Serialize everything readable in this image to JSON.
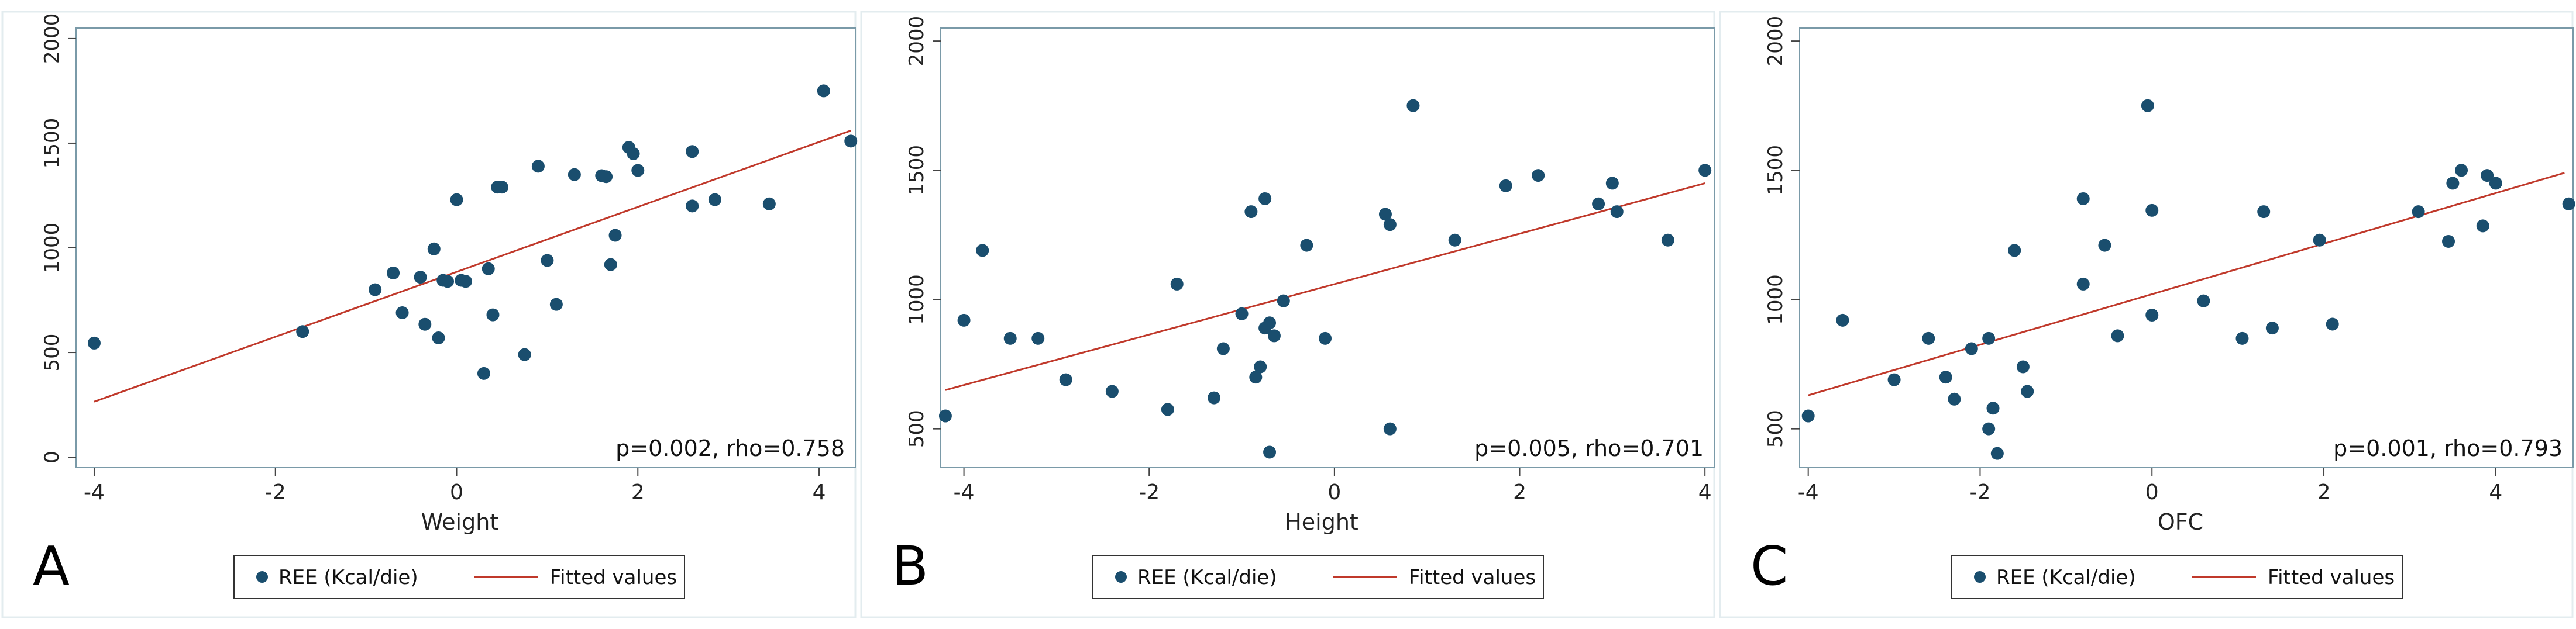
{
  "colors": {
    "point": "#1a4e6e",
    "fit_line": "#c0392b",
    "plot_frame": "#7a9aa8",
    "background": "#ffffff"
  },
  "chart_data": [
    {
      "type": "scatter",
      "panel_label": "A",
      "xlabel": "Weight",
      "ylabel": "",
      "xlim": [
        -4.2,
        4.4
      ],
      "ylim": [
        -50,
        2050
      ],
      "xticks": [
        -4,
        -2,
        0,
        2,
        4
      ],
      "xtick_labels": [
        "-4",
        "-2",
        "0",
        "2",
        "4"
      ],
      "yticks": [
        0,
        500,
        1000,
        1500,
        2000
      ],
      "ytick_labels": [
        "0",
        "500",
        "1000",
        "1500",
        "2000"
      ],
      "annotation": "p=0.002, rho=0.758",
      "legend": [
        "REE (Kcal/die)",
        "Fitted values"
      ],
      "fit_line": {
        "x": [
          -4.0,
          4.35
        ],
        "y": [
          265,
          1560
        ]
      },
      "series": [
        {
          "name": "REE (Kcal/die)",
          "x": [
            -4.0,
            -1.7,
            -0.9,
            -0.7,
            -0.6,
            -0.4,
            -0.35,
            -0.25,
            -0.2,
            -0.15,
            -0.1,
            0.0,
            0.05,
            0.1,
            0.3,
            0.35,
            0.4,
            0.45,
            0.5,
            0.75,
            0.9,
            1.0,
            1.1,
            1.3,
            1.6,
            1.65,
            1.7,
            1.75,
            1.9,
            1.95,
            2.0,
            2.6,
            2.6,
            2.85,
            3.45,
            4.05,
            4.35
          ],
          "y": [
            545,
            600,
            800,
            880,
            690,
            860,
            635,
            995,
            570,
            845,
            840,
            1230,
            845,
            840,
            400,
            900,
            680,
            1290,
            1290,
            490,
            1390,
            940,
            730,
            1350,
            1345,
            1340,
            920,
            1060,
            1480,
            1450,
            1370,
            1200,
            1460,
            1230,
            1210,
            1750,
            1510
          ]
        }
      ]
    },
    {
      "type": "scatter",
      "panel_label": "B",
      "xlabel": "Height",
      "ylabel": "",
      "xlim": [
        -4.25,
        4.1
      ],
      "ylim": [
        350,
        2050
      ],
      "xticks": [
        -4,
        -2,
        0,
        2,
        4
      ],
      "xtick_labels": [
        "-4",
        "-2",
        "0",
        "2",
        "4"
      ],
      "yticks": [
        500,
        1000,
        1500,
        2000
      ],
      "ytick_labels": [
        "500",
        "1000",
        "1500",
        "2000"
      ],
      "annotation": "p=0.005, rho=0.701",
      "legend": [
        "REE (Kcal/die)",
        "Fitted values"
      ],
      "fit_line": {
        "x": [
          -4.2,
          4.0
        ],
        "y": [
          650,
          1450
        ]
      },
      "series": [
        {
          "name": "REE (Kcal/die)",
          "x": [
            -4.2,
            -4.0,
            -3.8,
            -3.5,
            -3.2,
            -2.9,
            -2.4,
            -1.8,
            -1.7,
            -1.3,
            -1.2,
            -1.0,
            -0.9,
            -0.85,
            -0.8,
            -0.75,
            -0.75,
            -0.7,
            -0.7,
            -0.65,
            -0.55,
            -0.3,
            -0.1,
            0.55,
            0.6,
            0.6,
            0.85,
            1.3,
            1.85,
            2.2,
            2.85,
            3.0,
            3.05,
            3.6,
            4.0
          ],
          "y": [
            550,
            920,
            1190,
            850,
            850,
            690,
            645,
            575,
            1060,
            620,
            810,
            945,
            1340,
            700,
            740,
            1390,
            890,
            910,
            410,
            860,
            995,
            1210,
            850,
            1330,
            1290,
            500,
            1750,
            1230,
            1440,
            1480,
            1370,
            1450,
            1340,
            1230,
            1500
          ]
        }
      ]
    },
    {
      "type": "scatter",
      "panel_label": "C",
      "xlabel": "OFC",
      "ylabel": "",
      "xlim": [
        -4.1,
        4.9
      ],
      "ylim": [
        350,
        2050
      ],
      "xticks": [
        -4,
        -2,
        0,
        2,
        4
      ],
      "xtick_labels": [
        "-4",
        "-2",
        "0",
        "2",
        "4"
      ],
      "yticks": [
        500,
        1000,
        1500,
        2000
      ],
      "ytick_labels": [
        "500",
        "1000",
        "1500",
        "2000"
      ],
      "annotation": "p=0.001, rho=0.793",
      "legend": [
        "REE (Kcal/die)",
        "Fitted values"
      ],
      "fit_line": {
        "x": [
          -4.0,
          4.8
        ],
        "y": [
          630,
          1490
        ]
      },
      "series": [
        {
          "name": "REE (Kcal/die)",
          "x": [
            -4.0,
            -3.6,
            -3.0,
            -2.6,
            -2.4,
            -2.3,
            -2.1,
            -1.9,
            -1.9,
            -1.85,
            -1.8,
            -1.6,
            -1.5,
            -1.45,
            -0.8,
            -0.8,
            -0.55,
            -0.4,
            -0.05,
            0.0,
            0.0,
            0.6,
            1.05,
            1.3,
            1.4,
            1.95,
            2.1,
            3.1,
            3.45,
            3.5,
            3.6,
            3.85,
            3.9,
            4.0,
            4.85
          ],
          "y": [
            550,
            920,
            690,
            850,
            700,
            615,
            810,
            850,
            500,
            580,
            405,
            1190,
            740,
            645,
            1390,
            1060,
            1210,
            860,
            1750,
            1345,
            940,
            995,
            850,
            1340,
            890,
            1230,
            905,
            1340,
            1225,
            1450,
            1500,
            1285,
            1480,
            1450,
            1370
          ]
        }
      ]
    }
  ]
}
